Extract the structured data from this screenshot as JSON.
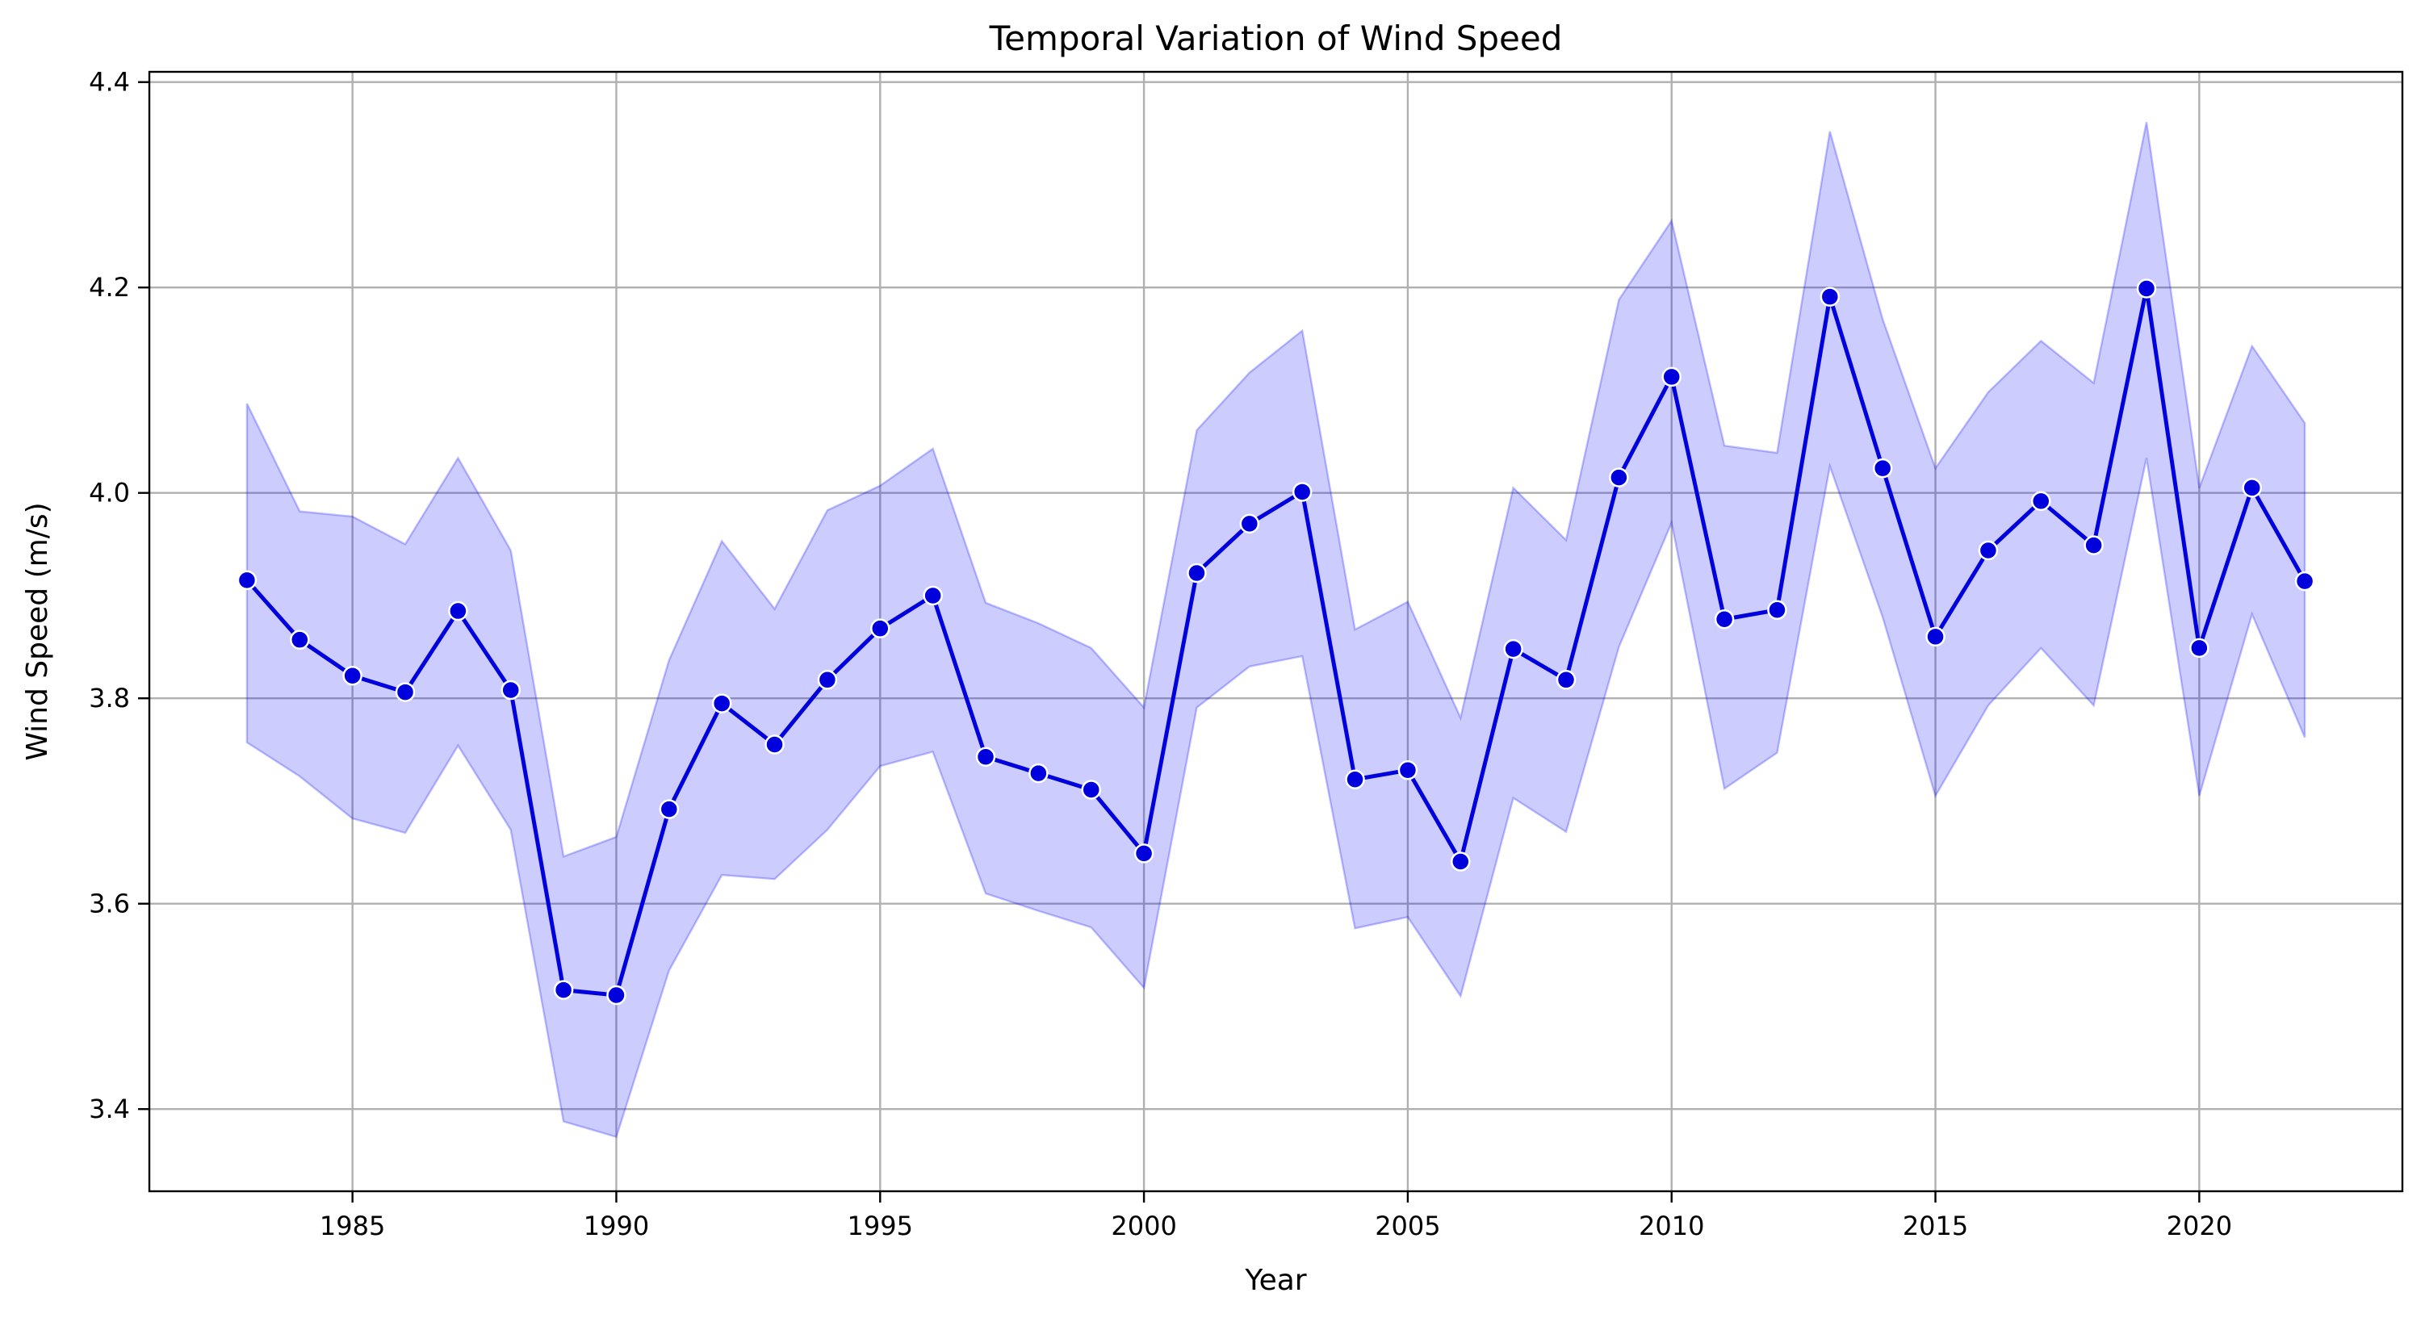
{
  "chart_data": {
    "type": "line",
    "title": "Temporal Variation of Wind Speed",
    "xlabel": "Year",
    "ylabel": "Wind Speed (m/s)",
    "xlim": [
      1981.15,
      2023.85
    ],
    "ylim": [
      3.32,
      4.41
    ],
    "x_ticks": [
      1985,
      1990,
      1995,
      2000,
      2005,
      2010,
      2015,
      2020
    ],
    "y_ticks": [
      "3.4",
      "3.6",
      "3.8",
      "4.0",
      "4.2",
      "4.4"
    ],
    "grid": true,
    "colors": {
      "line": "#0000dd",
      "band": "#0000ff"
    },
    "x": [
      1983,
      1984,
      1985,
      1986,
      1987,
      1988,
      1989,
      1990,
      1991,
      1992,
      1993,
      1994,
      1995,
      1996,
      1997,
      1998,
      1999,
      2000,
      2001,
      2002,
      2003,
      2004,
      2005,
      2006,
      2007,
      2008,
      2009,
      2010,
      2011,
      2012,
      2013,
      2014,
      2015,
      2016,
      2017,
      2018,
      2019,
      2020,
      2021,
      2022
    ],
    "y": [
      3.915,
      3.857,
      3.822,
      3.806,
      3.885,
      3.808,
      3.516,
      3.511,
      3.692,
      3.795,
      3.755,
      3.818,
      3.868,
      3.9,
      3.743,
      3.727,
      3.711,
      3.649,
      3.922,
      3.97,
      4.001,
      3.721,
      3.73,
      3.641,
      3.848,
      3.818,
      4.015,
      4.113,
      3.877,
      3.886,
      4.191,
      4.024,
      3.86,
      3.944,
      3.992,
      3.949,
      4.199,
      3.849,
      4.005,
      3.914
    ],
    "y_upper": [
      4.087,
      3.982,
      3.977,
      3.95,
      4.034,
      3.944,
      3.646,
      3.665,
      3.837,
      3.953,
      3.887,
      3.983,
      4.007,
      4.043,
      3.893,
      3.873,
      3.849,
      3.791,
      4.061,
      4.117,
      4.158,
      3.867,
      3.894,
      3.781,
      4.005,
      3.954,
      4.188,
      4.265,
      4.046,
      4.039,
      4.352,
      4.169,
      4.024,
      4.098,
      4.148,
      4.107,
      4.361,
      4.005,
      4.143,
      4.068
    ],
    "y_lower": [
      3.757,
      3.724,
      3.683,
      3.669,
      3.754,
      3.672,
      3.388,
      3.373,
      3.535,
      3.628,
      3.624,
      3.672,
      3.734,
      3.748,
      3.61,
      3.593,
      3.577,
      3.518,
      3.791,
      3.831,
      3.841,
      3.576,
      3.587,
      3.51,
      3.703,
      3.67,
      3.85,
      3.971,
      3.712,
      3.747,
      4.026,
      3.879,
      3.705,
      3.793,
      3.849,
      3.793,
      4.034,
      3.705,
      3.882,
      3.762
    ]
  }
}
